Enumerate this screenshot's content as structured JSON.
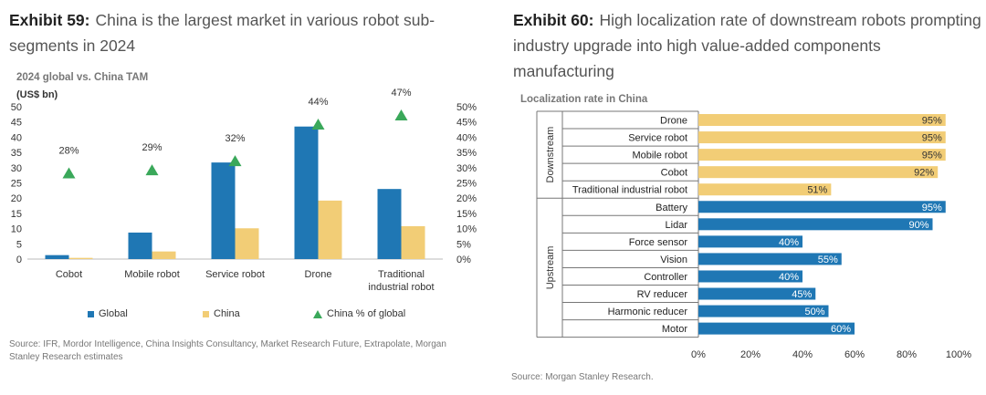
{
  "left": {
    "exhibit_number": "Exhibit 59:",
    "exhibit_title": "China is the largest market in various robot sub-segments in 2024",
    "subtitle": "2024 global vs. China TAM",
    "unit_label": "(US$ bn)",
    "source": "Source: IFR, Mordor Intelligence, China Insights Consultancy, Market Research Future, Extrapolate, Morgan Stanley Research estimates",
    "legend": {
      "global": "Global",
      "china": "China",
      "pct": "China % of global"
    }
  },
  "right": {
    "exhibit_number": "Exhibit 60:",
    "exhibit_title": "High localization rate of downstream robots prompting industry upgrade into high value-added components manufacturing",
    "subtitle": "Localization rate in China",
    "source": "Source: Morgan Stanley Research.",
    "group_downstream": "Downstream",
    "group_upstream": "Upstream"
  },
  "colors": {
    "global": "#1f77b4",
    "china": "#f2cd76",
    "triangle": "#3aa85a",
    "downstream": "#f2cd76",
    "upstream": "#1f77b4"
  },
  "chart_data": [
    {
      "type": "bar",
      "title": "2024 global vs. China TAM",
      "ylabel": "(US$ bn)",
      "categories": [
        "Cobot",
        "Mobile robot",
        "Service robot",
        "Drone",
        "Traditional industrial robot"
      ],
      "category_labels": [
        [
          "Cobot"
        ],
        [
          "Mobile robot"
        ],
        [
          "Service robot"
        ],
        [
          "Drone"
        ],
        [
          "Traditional",
          "industrial robot"
        ]
      ],
      "series": [
        {
          "name": "Global",
          "values": [
            1.3,
            8.7,
            31.7,
            43.5,
            23.0
          ]
        },
        {
          "name": "China",
          "values": [
            0.4,
            2.5,
            10.1,
            19.2,
            10.8
          ]
        }
      ],
      "secondary_series": {
        "name": "China % of global",
        "type": "scatter",
        "values": [
          28,
          29,
          32,
          44,
          47
        ],
        "labels": [
          "28%",
          "29%",
          "32%",
          "44%",
          "47%"
        ]
      },
      "ylim": [
        0,
        50
      ],
      "y_ticks": [
        0,
        5,
        10,
        15,
        20,
        25,
        30,
        35,
        40,
        45,
        50
      ],
      "y2lim": [
        0,
        50
      ],
      "y2_ticks": [
        "0%",
        "5%",
        "10%",
        "15%",
        "20%",
        "25%",
        "30%",
        "35%",
        "40%",
        "45%",
        "50%"
      ],
      "legend_position": "bottom"
    },
    {
      "type": "bar",
      "orientation": "horizontal",
      "title": "Localization rate in China",
      "categories": [
        "Drone",
        "Service robot",
        "Mobile robot",
        "Cobot",
        "Traditional industrial robot",
        "Battery",
        "Lidar",
        "Force sensor",
        "Vision",
        "Controller",
        "RV reducer",
        "Harmonic reducer",
        "Motor"
      ],
      "groups": [
        "Downstream",
        "Downstream",
        "Downstream",
        "Downstream",
        "Downstream",
        "Upstream",
        "Upstream",
        "Upstream",
        "Upstream",
        "Upstream",
        "Upstream",
        "Upstream",
        "Upstream"
      ],
      "values": [
        95,
        95,
        95,
        92,
        51,
        95,
        90,
        40,
        55,
        40,
        45,
        50,
        60
      ],
      "value_labels": [
        "95%",
        "95%",
        "95%",
        "92%",
        "51%",
        "95%",
        "90%",
        "40%",
        "55%",
        "40%",
        "45%",
        "50%",
        "60%"
      ],
      "xlim": [
        0,
        100
      ],
      "x_ticks": [
        "0%",
        "20%",
        "40%",
        "60%",
        "80%",
        "100%"
      ]
    }
  ]
}
